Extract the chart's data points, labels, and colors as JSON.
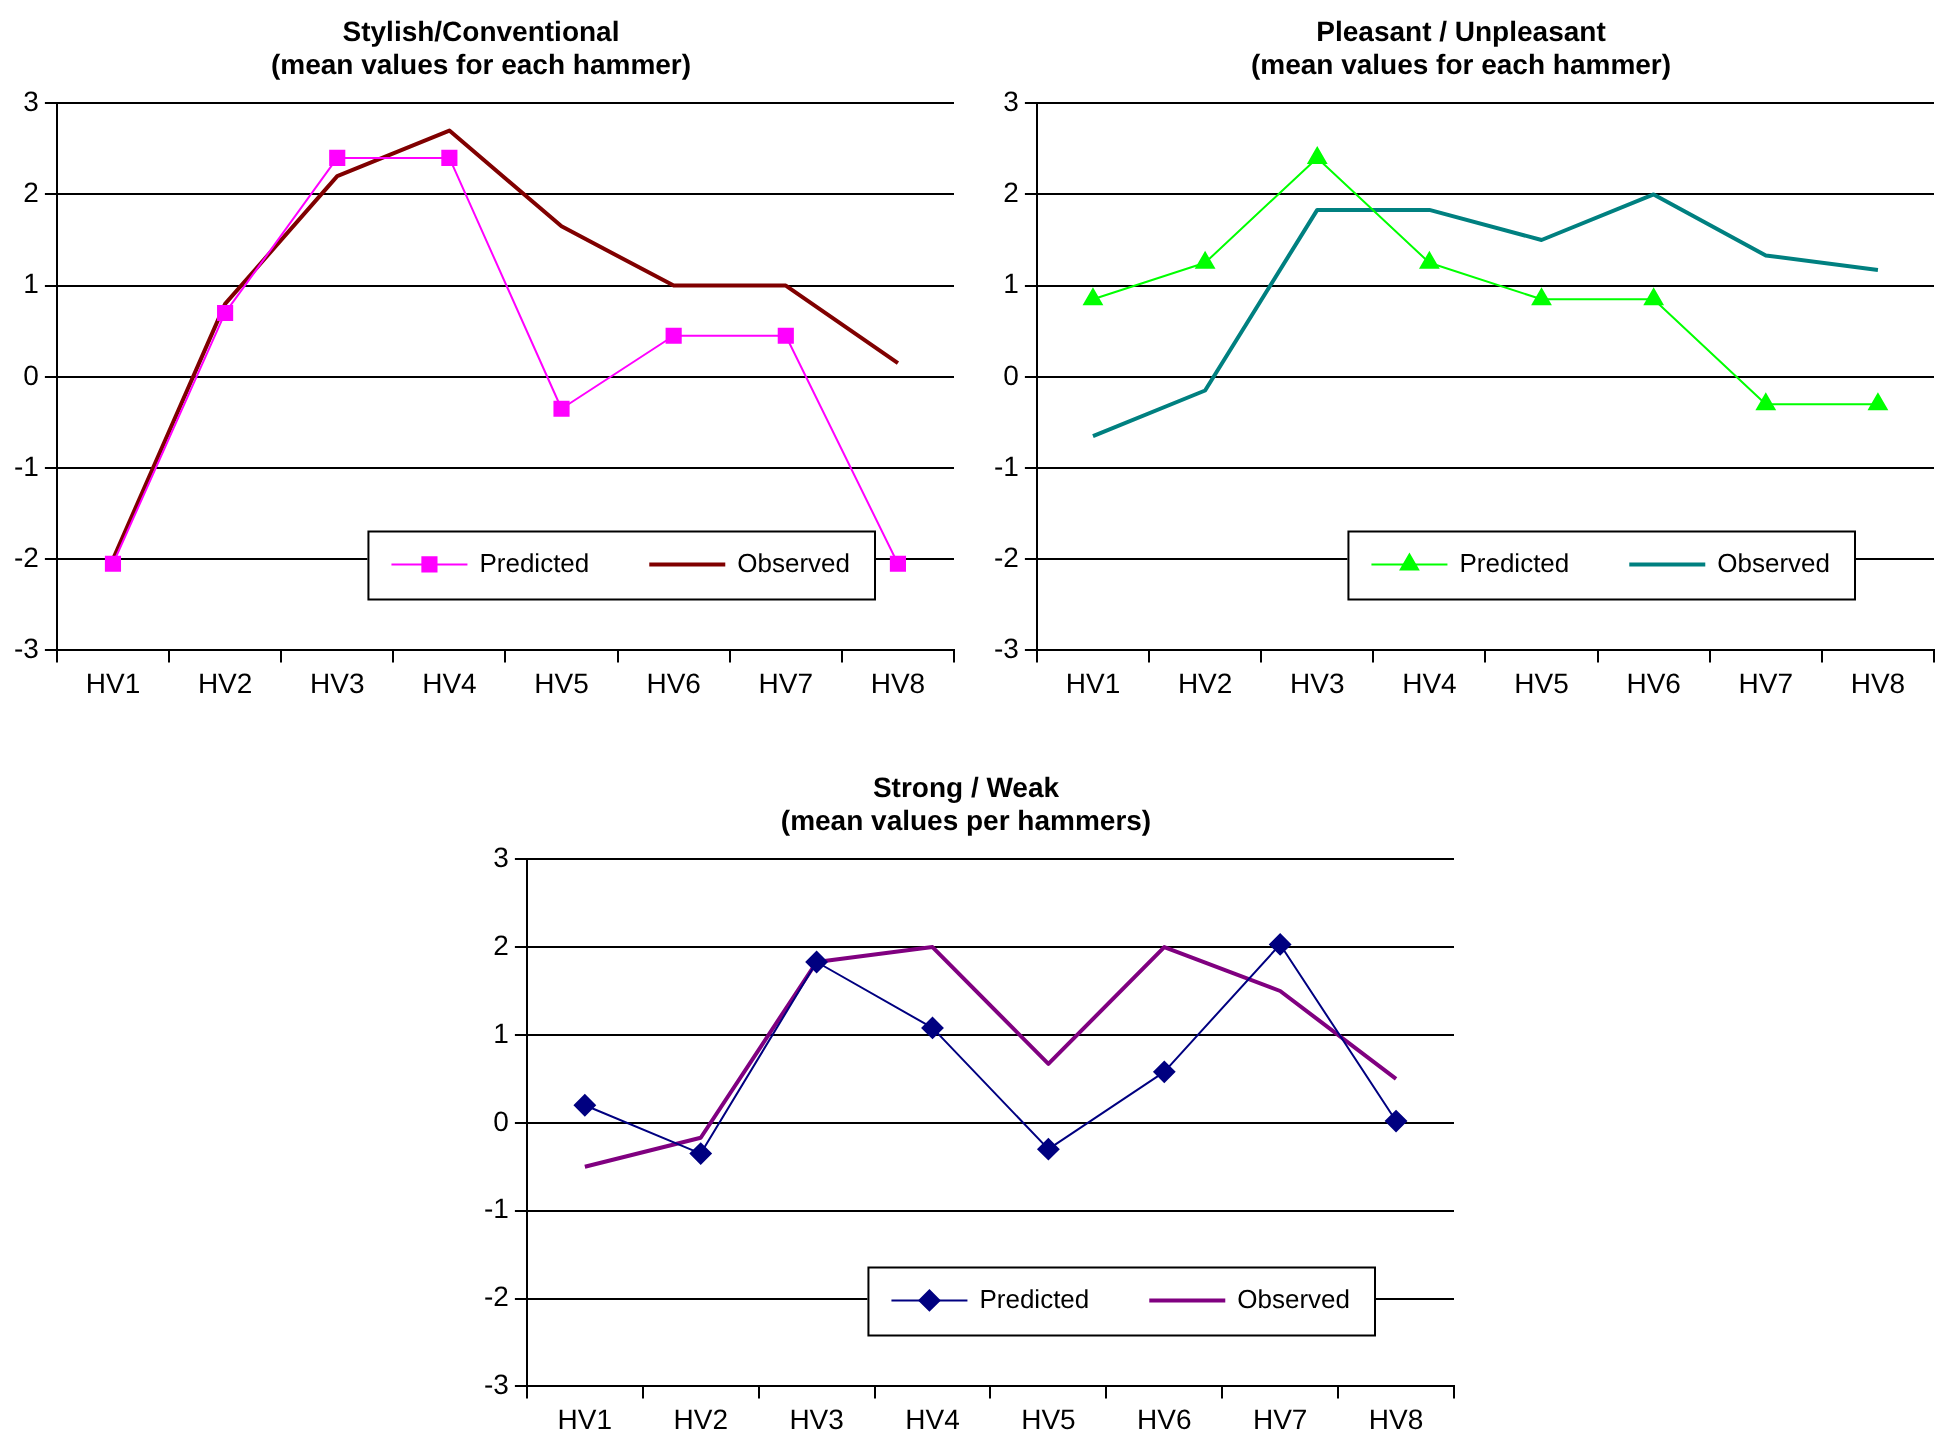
{
  "chart_data": [
    {
      "type": "line",
      "title": "Stylish/Conventional",
      "subtitle": "(mean values for each hammer)",
      "categories": [
        "HV1",
        "HV2",
        "HV3",
        "HV4",
        "HV5",
        "HV6",
        "HV7",
        "HV8"
      ],
      "ylim": [
        -3,
        3
      ],
      "yticks": [
        -3,
        -2,
        -1,
        0,
        1,
        2,
        3
      ],
      "grid": "y",
      "legend": "bottom right",
      "series": [
        {
          "name": "Predicted",
          "color": "#ff00ff",
          "marker": "square",
          "values": [
            -2.05,
            0.7,
            2.4,
            2.4,
            -0.35,
            0.45,
            0.45,
            -2.05
          ]
        },
        {
          "name": "Observed",
          "color": "#800000",
          "marker": "none",
          "values": [
            -2.0,
            0.8,
            2.2,
            2.7,
            1.65,
            1.0,
            1.0,
            0.15
          ]
        }
      ]
    },
    {
      "type": "line",
      "title": "Pleasant / Unpleasant",
      "subtitle": "(mean values for each hammer)",
      "categories": [
        "HV1",
        "HV2",
        "HV3",
        "HV4",
        "HV5",
        "HV6",
        "HV7",
        "HV8"
      ],
      "ylim": [
        -3,
        3
      ],
      "yticks": [
        -3,
        -2,
        -1,
        0,
        1,
        2,
        3
      ],
      "grid": "y",
      "legend": "bottom right",
      "series": [
        {
          "name": "Predicted",
          "color": "#00ff00",
          "marker": "triangle",
          "values": [
            0.85,
            1.25,
            2.4,
            1.25,
            0.85,
            0.85,
            -0.3,
            -0.3
          ]
        },
        {
          "name": "Observed",
          "color": "#008080",
          "marker": "none",
          "values": [
            -0.65,
            -0.15,
            1.83,
            1.83,
            1.5,
            2.0,
            1.33,
            1.17
          ]
        }
      ]
    },
    {
      "type": "line",
      "title": "Strong / Weak",
      "subtitle": "(mean values per hammers)",
      "categories": [
        "HV1",
        "HV2",
        "HV3",
        "HV4",
        "HV5",
        "HV6",
        "HV7",
        "HV8"
      ],
      "ylim": [
        -3,
        3
      ],
      "yticks": [
        -3,
        -2,
        -1,
        0,
        1,
        2,
        3
      ],
      "grid": "y",
      "legend": "bottom right",
      "series": [
        {
          "name": "Predicted",
          "color": "#000080",
          "marker": "diamond",
          "values": [
            0.2,
            -0.35,
            1.83,
            1.08,
            -0.3,
            0.58,
            2.03,
            0.02
          ]
        },
        {
          "name": "Observed",
          "color": "#800080",
          "marker": "none",
          "values": [
            -0.5,
            -0.17,
            1.83,
            2.0,
            0.67,
            2.0,
            1.5,
            0.5
          ]
        }
      ]
    }
  ]
}
